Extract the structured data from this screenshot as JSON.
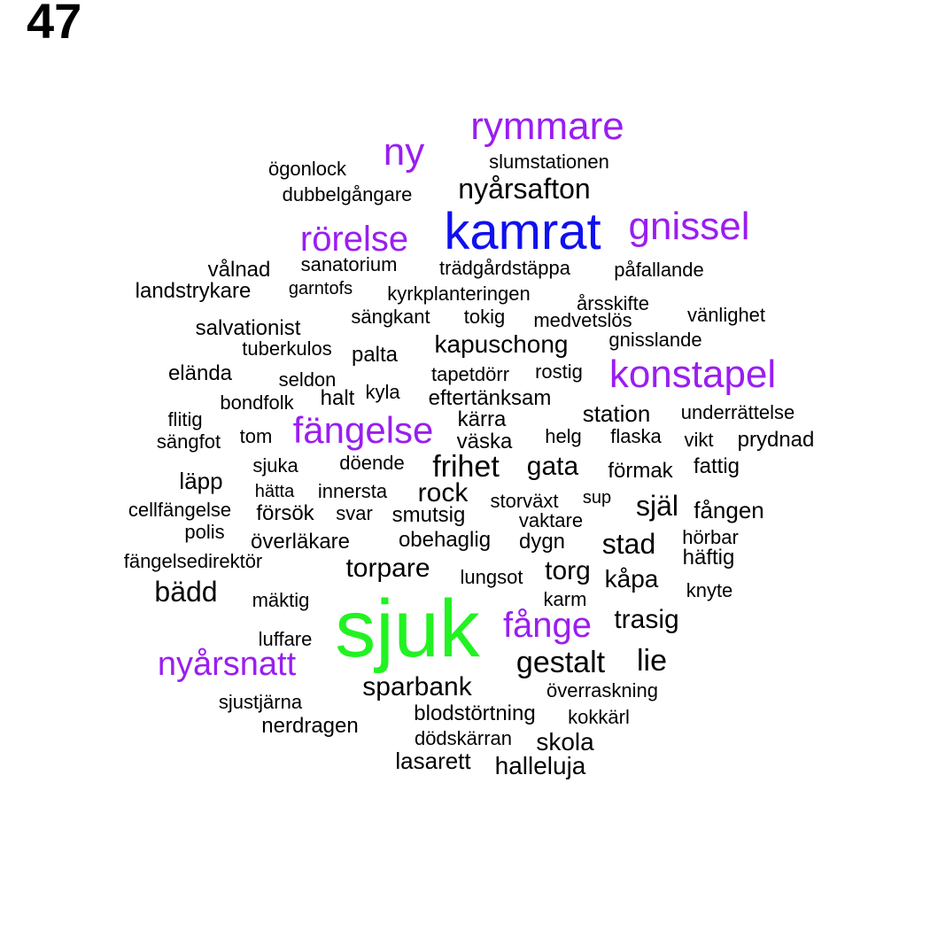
{
  "page_number": "47",
  "palette": {
    "sjuk": "#22f222",
    "kamrat": "#1010f0",
    "purple": "#9a1ef0",
    "black": "#000000"
  },
  "words": [
    {
      "text": "sjuk",
      "color": "purple_big_green"
    },
    {
      "text": "kamrat",
      "color": "blue"
    },
    {
      "text": "rymmare",
      "color": "purple"
    },
    {
      "text": "ny",
      "color": "purple"
    },
    {
      "text": "gnissel",
      "color": "purple"
    },
    {
      "text": "rörelse",
      "color": "purple"
    },
    {
      "text": "konstapel",
      "color": "purple"
    },
    {
      "text": "fängelse",
      "color": "purple"
    },
    {
      "text": "fånge",
      "color": "purple"
    },
    {
      "text": "nyårsnatt",
      "color": "purple"
    },
    {
      "text": "slumstationen"
    },
    {
      "text": "ögonlock"
    },
    {
      "text": "nyårsafton"
    },
    {
      "text": "dubbelgångare"
    },
    {
      "text": "vålnad"
    },
    {
      "text": "sanatorium"
    },
    {
      "text": "trädgårdstäppa"
    },
    {
      "text": "påfallande"
    },
    {
      "text": "landstrykare"
    },
    {
      "text": "garntofs"
    },
    {
      "text": "kyrkplanteringen"
    },
    {
      "text": "årsskifte"
    },
    {
      "text": "sängkant"
    },
    {
      "text": "tokig"
    },
    {
      "text": "medvetslös"
    },
    {
      "text": "vänlighet"
    },
    {
      "text": "salvationist"
    },
    {
      "text": "kapuschong"
    },
    {
      "text": "gnisslande"
    },
    {
      "text": "tuberkulos"
    },
    {
      "text": "palta"
    },
    {
      "text": "eländа"
    },
    {
      "text": "seldon"
    },
    {
      "text": "tapetdörr"
    },
    {
      "text": "rostig"
    },
    {
      "text": "bondfolk"
    },
    {
      "text": "halt"
    },
    {
      "text": "kyla"
    },
    {
      "text": "eftertänksam"
    },
    {
      "text": "flitig"
    },
    {
      "text": "kärra"
    },
    {
      "text": "station"
    },
    {
      "text": "underrättelse"
    },
    {
      "text": "sängfot"
    },
    {
      "text": "tom"
    },
    {
      "text": "väska"
    },
    {
      "text": "helg"
    },
    {
      "text": "flaska"
    },
    {
      "text": "vikt"
    },
    {
      "text": "prydnad"
    },
    {
      "text": "sjuka"
    },
    {
      "text": "döende"
    },
    {
      "text": "frihet"
    },
    {
      "text": "gata"
    },
    {
      "text": "förmak"
    },
    {
      "text": "fattig"
    },
    {
      "text": "läpp"
    },
    {
      "text": "hätta"
    },
    {
      "text": "innersta"
    },
    {
      "text": "rock"
    },
    {
      "text": "storväxt"
    },
    {
      "text": "sup"
    },
    {
      "text": "själ"
    },
    {
      "text": "fången"
    },
    {
      "text": "cellfängelse"
    },
    {
      "text": "försök"
    },
    {
      "text": "svar"
    },
    {
      "text": "smutsig"
    },
    {
      "text": "vaktare"
    },
    {
      "text": "polis"
    },
    {
      "text": "överläkare"
    },
    {
      "text": "obehaglig"
    },
    {
      "text": "dygn"
    },
    {
      "text": "stad"
    },
    {
      "text": "hörbar"
    },
    {
      "text": "fängelsedirektör"
    },
    {
      "text": "häftig"
    },
    {
      "text": "torpare"
    },
    {
      "text": "lungsot"
    },
    {
      "text": "torg"
    },
    {
      "text": "kåpa"
    },
    {
      "text": "bädd"
    },
    {
      "text": "knyte"
    },
    {
      "text": "mäktig"
    },
    {
      "text": "karm"
    },
    {
      "text": "trasig"
    },
    {
      "text": "luffare"
    },
    {
      "text": "gestalt"
    },
    {
      "text": "lie"
    },
    {
      "text": "sparbank"
    },
    {
      "text": "överraskning"
    },
    {
      "text": "sjustjärna"
    },
    {
      "text": "blodstörtning"
    },
    {
      "text": "kokkärl"
    },
    {
      "text": "nerdragen"
    },
    {
      "text": "dödskärran"
    },
    {
      "text": "skola"
    },
    {
      "text": "lasarett"
    },
    {
      "text": "halleluja"
    }
  ]
}
